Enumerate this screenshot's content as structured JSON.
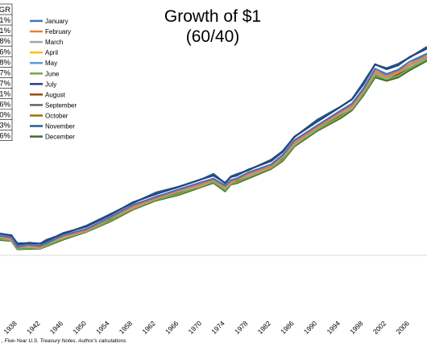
{
  "chart_data": {
    "type": "line",
    "title": "Growth of $1",
    "subtitle": "(60/40)",
    "xlabel": "",
    "ylabel": "",
    "source": ", Five-Year U.S. Treasury Notes. Author's calculations",
    "xlim": [
      1935,
      2009
    ],
    "ylim": [
      0.25,
      2.46
    ],
    "grid": false,
    "legend_position": "top-left",
    "x_ticks": [
      "1938",
      "1942",
      "1946",
      "1950",
      "1954",
      "1958",
      "1962",
      "1966",
      "1970",
      "1974",
      "1978",
      "1982",
      "1986",
      "1990",
      "1994",
      "1998",
      "2002",
      "2006"
    ],
    "cagr_table": {
      "header": "GR",
      "values": [
        "1%",
        "1%",
        "8%",
        "6%",
        "8%",
        "7%",
        "7%",
        "1%",
        "6%",
        "0%",
        "3%",
        "6%"
      ]
    },
    "x": [
      1935,
      1937,
      1938,
      1940,
      1942,
      1943,
      1946,
      1950,
      1954,
      1958,
      1962,
      1966,
      1970,
      1972,
      1974,
      1975,
      1976,
      1978,
      1982,
      1984,
      1986,
      1990,
      1994,
      1996,
      1998,
      2000,
      2002,
      2004,
      2006,
      2009
    ],
    "series": [
      {
        "name": "January",
        "color": "#4472c4",
        "offset": 0.0
      },
      {
        "name": "February",
        "color": "#ed7d31",
        "offset": -0.015
      },
      {
        "name": "March",
        "color": "#a5a5a5",
        "offset": -0.025
      },
      {
        "name": "April",
        "color": "#ffc000",
        "offset": -0.02
      },
      {
        "name": "May",
        "color": "#5b9bd5",
        "offset": -0.01
      },
      {
        "name": "June",
        "color": "#70ad47",
        "offset": -0.04
      },
      {
        "name": "July",
        "color": "#264478",
        "offset": 0.03
      },
      {
        "name": "August",
        "color": "#9e480e",
        "offset": -0.03
      },
      {
        "name": "September",
        "color": "#636363",
        "offset": -0.02
      },
      {
        "name": "October",
        "color": "#997300",
        "offset": -0.035
      },
      {
        "name": "November",
        "color": "#255e91",
        "offset": 0.035
      },
      {
        "name": "December",
        "color": "#43682b",
        "offset": -0.05
      }
    ],
    "base_values": [
      0.42,
      0.4,
      0.33,
      0.34,
      0.33,
      0.36,
      0.42,
      0.48,
      0.58,
      0.68,
      0.76,
      0.82,
      0.88,
      0.92,
      0.85,
      0.9,
      0.92,
      0.96,
      1.04,
      1.12,
      1.24,
      1.38,
      1.5,
      1.56,
      1.7,
      1.86,
      1.82,
      1.86,
      1.92,
      2.0
    ]
  }
}
